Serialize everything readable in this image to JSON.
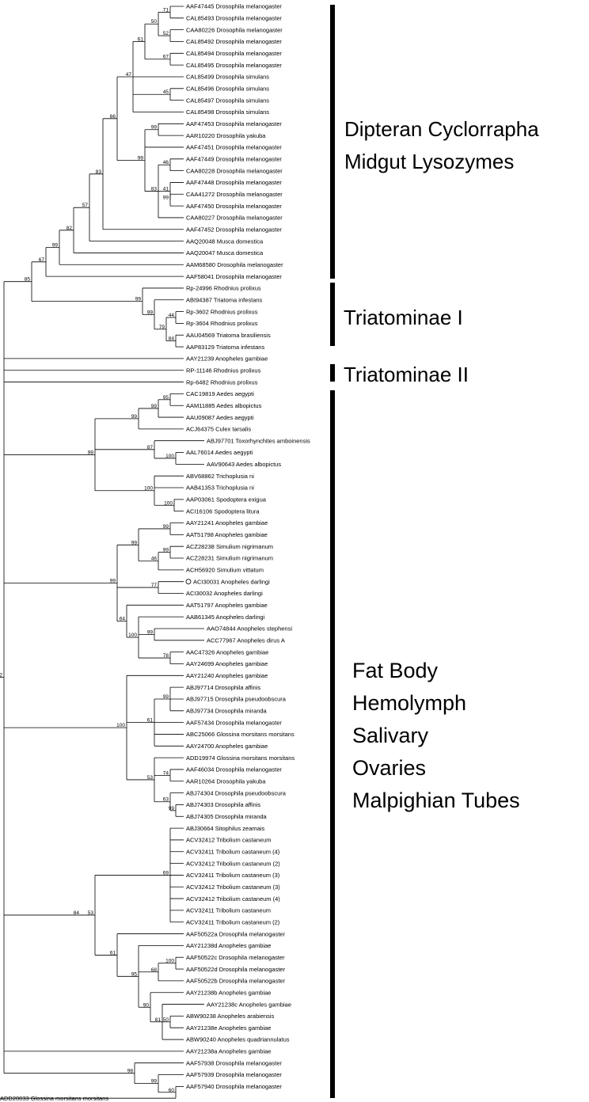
{
  "tree": {
    "leaves": [
      "AAF47445 Drosophila melanogaster",
      "CAL85493 Drosophila melanogaster",
      "CAA80226 Drosophila melanogaster",
      "CAL85492 Drosophila melanogaster",
      "CAL85494 Drosophila melanogaster",
      "CAL85495 Drosophila melanogaster",
      "CAL85499 Drosophila simulans",
      "CAL85496 Drosophila simulans",
      "CAL85497 Drosophila simulans",
      "CAL85498 Drosophila simulans",
      "AAF47453 Drosophila melanogaster",
      "AAR10220 Drosophila yakuba",
      "AAF47451 Drosophila melanogaster",
      "AAF47449 Drosophila melanogaster",
      "CAA80228 Drosophila melanogaster",
      "AAF47448 Drosophila melanogaster",
      "CAA41272 Drosophila melanogaster",
      "AAF47450 Drosophila melanogaster",
      "CAA80227 Drosophila melanogaster",
      "AAF47452 Drosophila melanogaster",
      "AAQ20048 Musca domestica",
      "AAQ20047 Musca domestica",
      "AAM68580 Drosophila melanogaster",
      "AAF58041 Drosophila melanogaster",
      "Rp-24996 Rhodnius prolixus",
      "ABI94387 Triatoma infestans",
      "Rp-3602 Rhodnius prolixus",
      "Rp-3604 Rhodnius prolixus",
      "AAU04569 Triatoma brasiliensis",
      "AAP83129 Triatoma infestans",
      "AAY21239 Anopheles gambiae",
      "RP-11146 Rhodnius prolixus",
      "Rp-6482 Rhodnius prolixus",
      "CAC19819 Aedes aegypti",
      "AAM11885 Aedes albopictus",
      "AAU09087 Aedes aegypti",
      "ACJ64375 Culex tarsalis",
      "ABJ97701 Toxorhynchites amboinensis",
      "AAL76014 Aedes aegypti",
      "AAV90643 Aedes albopictus",
      "ABV68862 Trichoplusia ni",
      "AAB41353 Trichoplusia ni",
      "AAP03061 Spodoptera exigua",
      "ACI16106 Spodoptera litura",
      "AAY21241 Anopheles gambiae",
      "AAT51798 Anopheles gambiae",
      "ACZ28238 Simulium nigrimanum",
      "ACZ28231 Simulium nigrimanum",
      "ACH56920 Simulium vittatum",
      "ACI30031 Anopheles darlingi",
      "ACI30032 Anopheles darlingi",
      "AAT51797 Anopheles gambiae",
      "AAB61345 Anopheles darlingi",
      "AAO74844 Anopheles stephensi",
      "ACC77967 Anopheles dirus A",
      "AAC47326 Anopheles gambiae",
      "AAY24699 Anopheles gambiae",
      "AAY21240 Anopheles gambiae",
      "ABJ97714 Drosophila affinis",
      "ABJ97715 Drosophila pseudoobscura",
      "ABJ97734 Drosophila miranda",
      "AAF57434 Drosophila melanogaster",
      "ABC25066 Glossina morsitans morsitans",
      "AAY24700 Anopheles gambiae",
      "ADD19974 Glossina morsitans morsitans",
      "AAF46034 Drosophila melanogaster",
      "AAR10264 Drosophila yakuba",
      "ABJ74304 Drosophila pseudoobscura",
      "ABJ74303 Drosophila affinis",
      "ABJ74305 Drosophila miranda",
      "ABJ30664 Sitophilus zeamais",
      "ACV32412 Tribolium castaneum",
      "ACV32411 Tribolium castaneum (4)",
      "ACV32412 Tribolium castaneum (2)",
      "ACV32411 Tribolium castaneum (3)",
      "ACV32412 Tribolium castaneum (3)",
      "ACV32412 Tribolium castaneum (4)",
      "ACV32411 Tribolium castaneum",
      "ACV32411 Tribolium castaneum (2)",
      "AAF50522a Drosophila melanogaster",
      "AAY21238d Anopheles gambiae",
      "AAF50522c Drosophila melanogaster",
      "AAF50522d Drosophila melanogaster",
      "AAF50522b Drosophila melanogaster",
      "AAY21238b Anopheles gambiae",
      "AAY21238c Anopheles gambiae",
      "ABW90238 Anopheles arabiensis",
      "AAY21238e Anopheles gambiae",
      "ABW90240 Anopheles quadriannulatus",
      "AAY21238a Anopheles gambiae",
      "AAF57938 Drosophila melanogaster",
      "AAF57939 Drosophila melanogaster",
      "AAF57940 Drosophila melanogaster",
      "ADD20033 Glossina morsitans morsitans"
    ],
    "highlighted_leaf": "ACI30031 Anopheles darlingi",
    "bootstrap": [
      "71",
      "52",
      "50",
      "67",
      "61",
      "45",
      "47",
      "99",
      "46",
      "99",
      "41",
      "83",
      "99",
      "66",
      "83",
      "57",
      "82",
      "99",
      "67",
      "44",
      "84",
      "79",
      "99",
      "99",
      "85",
      "95",
      "99",
      "99",
      "100",
      "87",
      "100",
      "100",
      "99",
      "99",
      "99",
      "46",
      "99",
      "77",
      "99",
      "78",
      "100",
      "64",
      "99",
      "99",
      "61",
      "74",
      "99",
      "63",
      "53",
      "100",
      "69",
      "100",
      "68",
      "50",
      "81",
      "90",
      "95",
      "61",
      "53",
      "84",
      "60",
      "99",
      "98",
      "72",
      "98",
      "62"
    ]
  },
  "groups": [
    {
      "lines": [
        "Dipteran Cyclorrapha",
        "Midgut Lysozymes"
      ]
    },
    {
      "lines": [
        "Triatominae I"
      ]
    },
    {
      "lines": [
        "Triatominae II"
      ]
    },
    {
      "lines": [
        "Fat Body",
        "Hemolymph",
        "Salivary",
        "Ovaries",
        "Malpighian Tubes"
      ]
    }
  ],
  "colors": {
    "line": "#000000",
    "background": "#ffffff"
  }
}
